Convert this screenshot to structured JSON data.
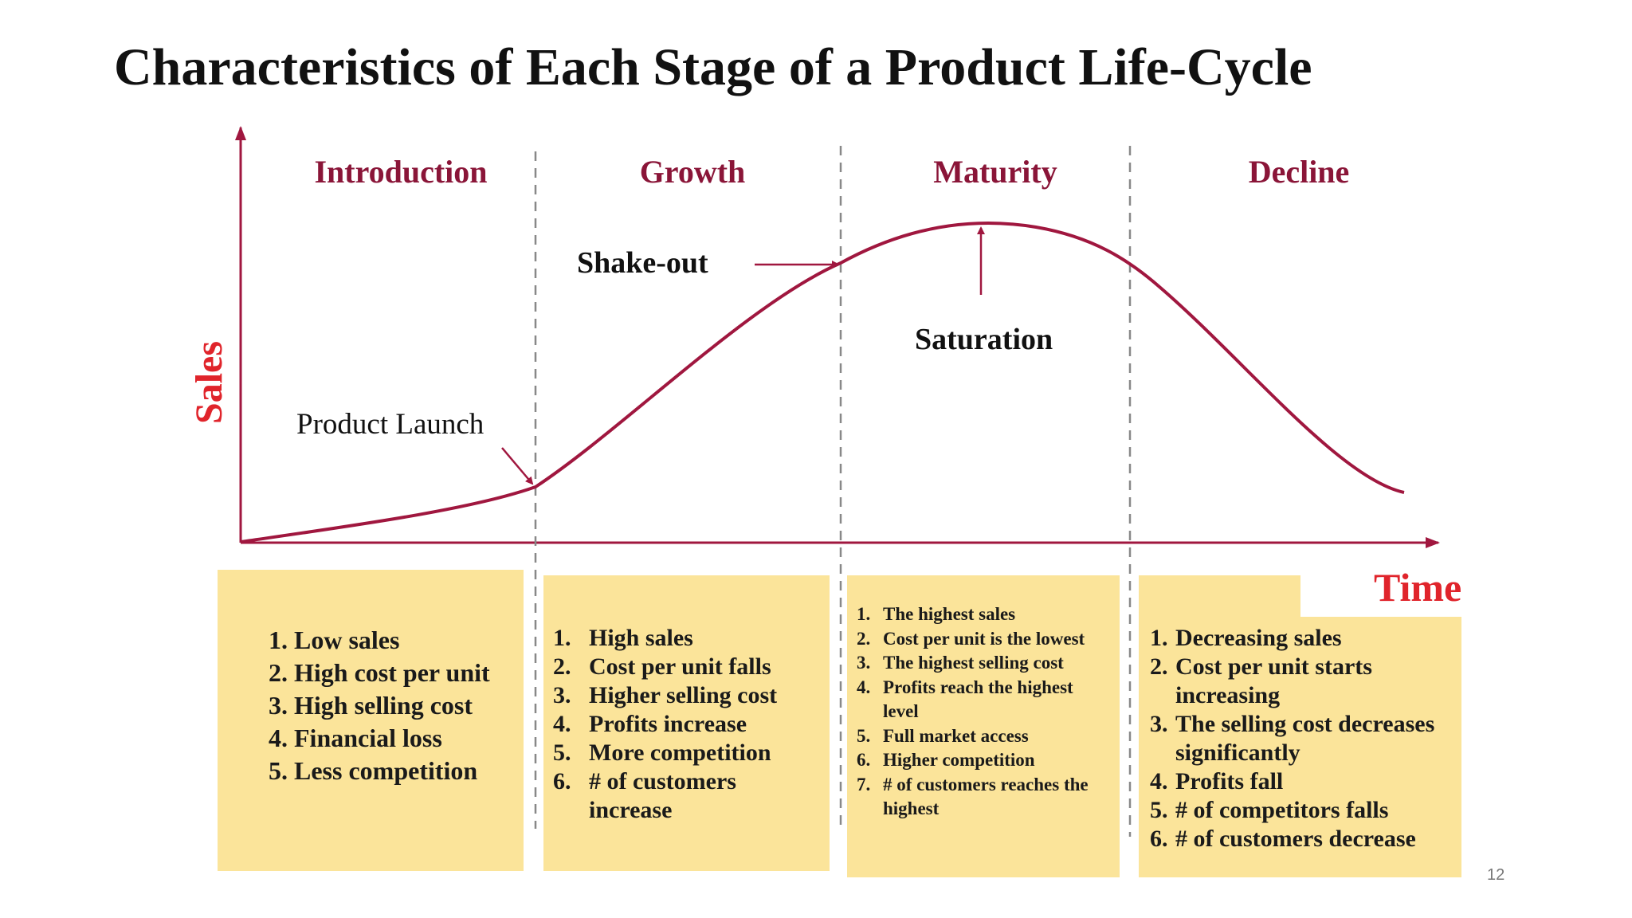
{
  "title": "Characteristics of Each Stage of a Product Life-Cycle",
  "axes": {
    "y_label": "Sales",
    "x_label": "Time"
  },
  "stages": [
    "Introduction",
    "Growth",
    "Maturity",
    "Decline"
  ],
  "annotations": {
    "product_launch": "Product Launch",
    "shake_out": "Shake-out",
    "saturation": "Saturation"
  },
  "colors": {
    "curve": "#a0173f",
    "stage_label": "#8a1538",
    "axis_label": "#e0242b",
    "box_fill": "#fbe49a"
  },
  "boxes": [
    {
      "items": [
        {
          "num": "1.",
          "text": "Low sales"
        },
        {
          "num": "2.",
          "text": "High cost per unit"
        },
        {
          "num": "3.",
          "text": "High selling cost"
        },
        {
          "num": "4.",
          "text": "Financial loss"
        },
        {
          "num": "5.",
          "text": "Less competition"
        }
      ]
    },
    {
      "items": [
        {
          "num": "1.",
          "text": "High sales"
        },
        {
          "num": "2.",
          "text": "Cost per unit falls"
        },
        {
          "num": "3.",
          "text": "Higher selling cost"
        },
        {
          "num": "4.",
          "text": "Profits increase"
        },
        {
          "num": "5.",
          "text": "More competition"
        },
        {
          "num": "6.",
          "text": "# of customers increase"
        }
      ]
    },
    {
      "items": [
        {
          "num": "1.",
          "text": "The highest sales"
        },
        {
          "num": "2.",
          "text": "Cost per unit is the lowest"
        },
        {
          "num": "3.",
          "text": "The highest selling cost"
        },
        {
          "num": "4.",
          "text": "Profits reach the highest level"
        },
        {
          "num": "5.",
          "text": "Full market access"
        },
        {
          "num": "6.",
          "text": "Higher competition"
        },
        {
          "num": "7.",
          "text": "# of customers reaches the highest"
        }
      ]
    },
    {
      "items": [
        {
          "num": "1.",
          "text": "Decreasing sales"
        },
        {
          "num": "2.",
          "text": "Cost per unit starts increasing"
        },
        {
          "num": "3.",
          "text": "The selling cost decreases significantly"
        },
        {
          "num": "4.",
          "text": "Profits fall"
        },
        {
          "num": "5.",
          "text": "# of competitors falls"
        },
        {
          "num": "6.",
          "text": "# of customers decrease"
        }
      ]
    }
  ],
  "page_number": "12"
}
